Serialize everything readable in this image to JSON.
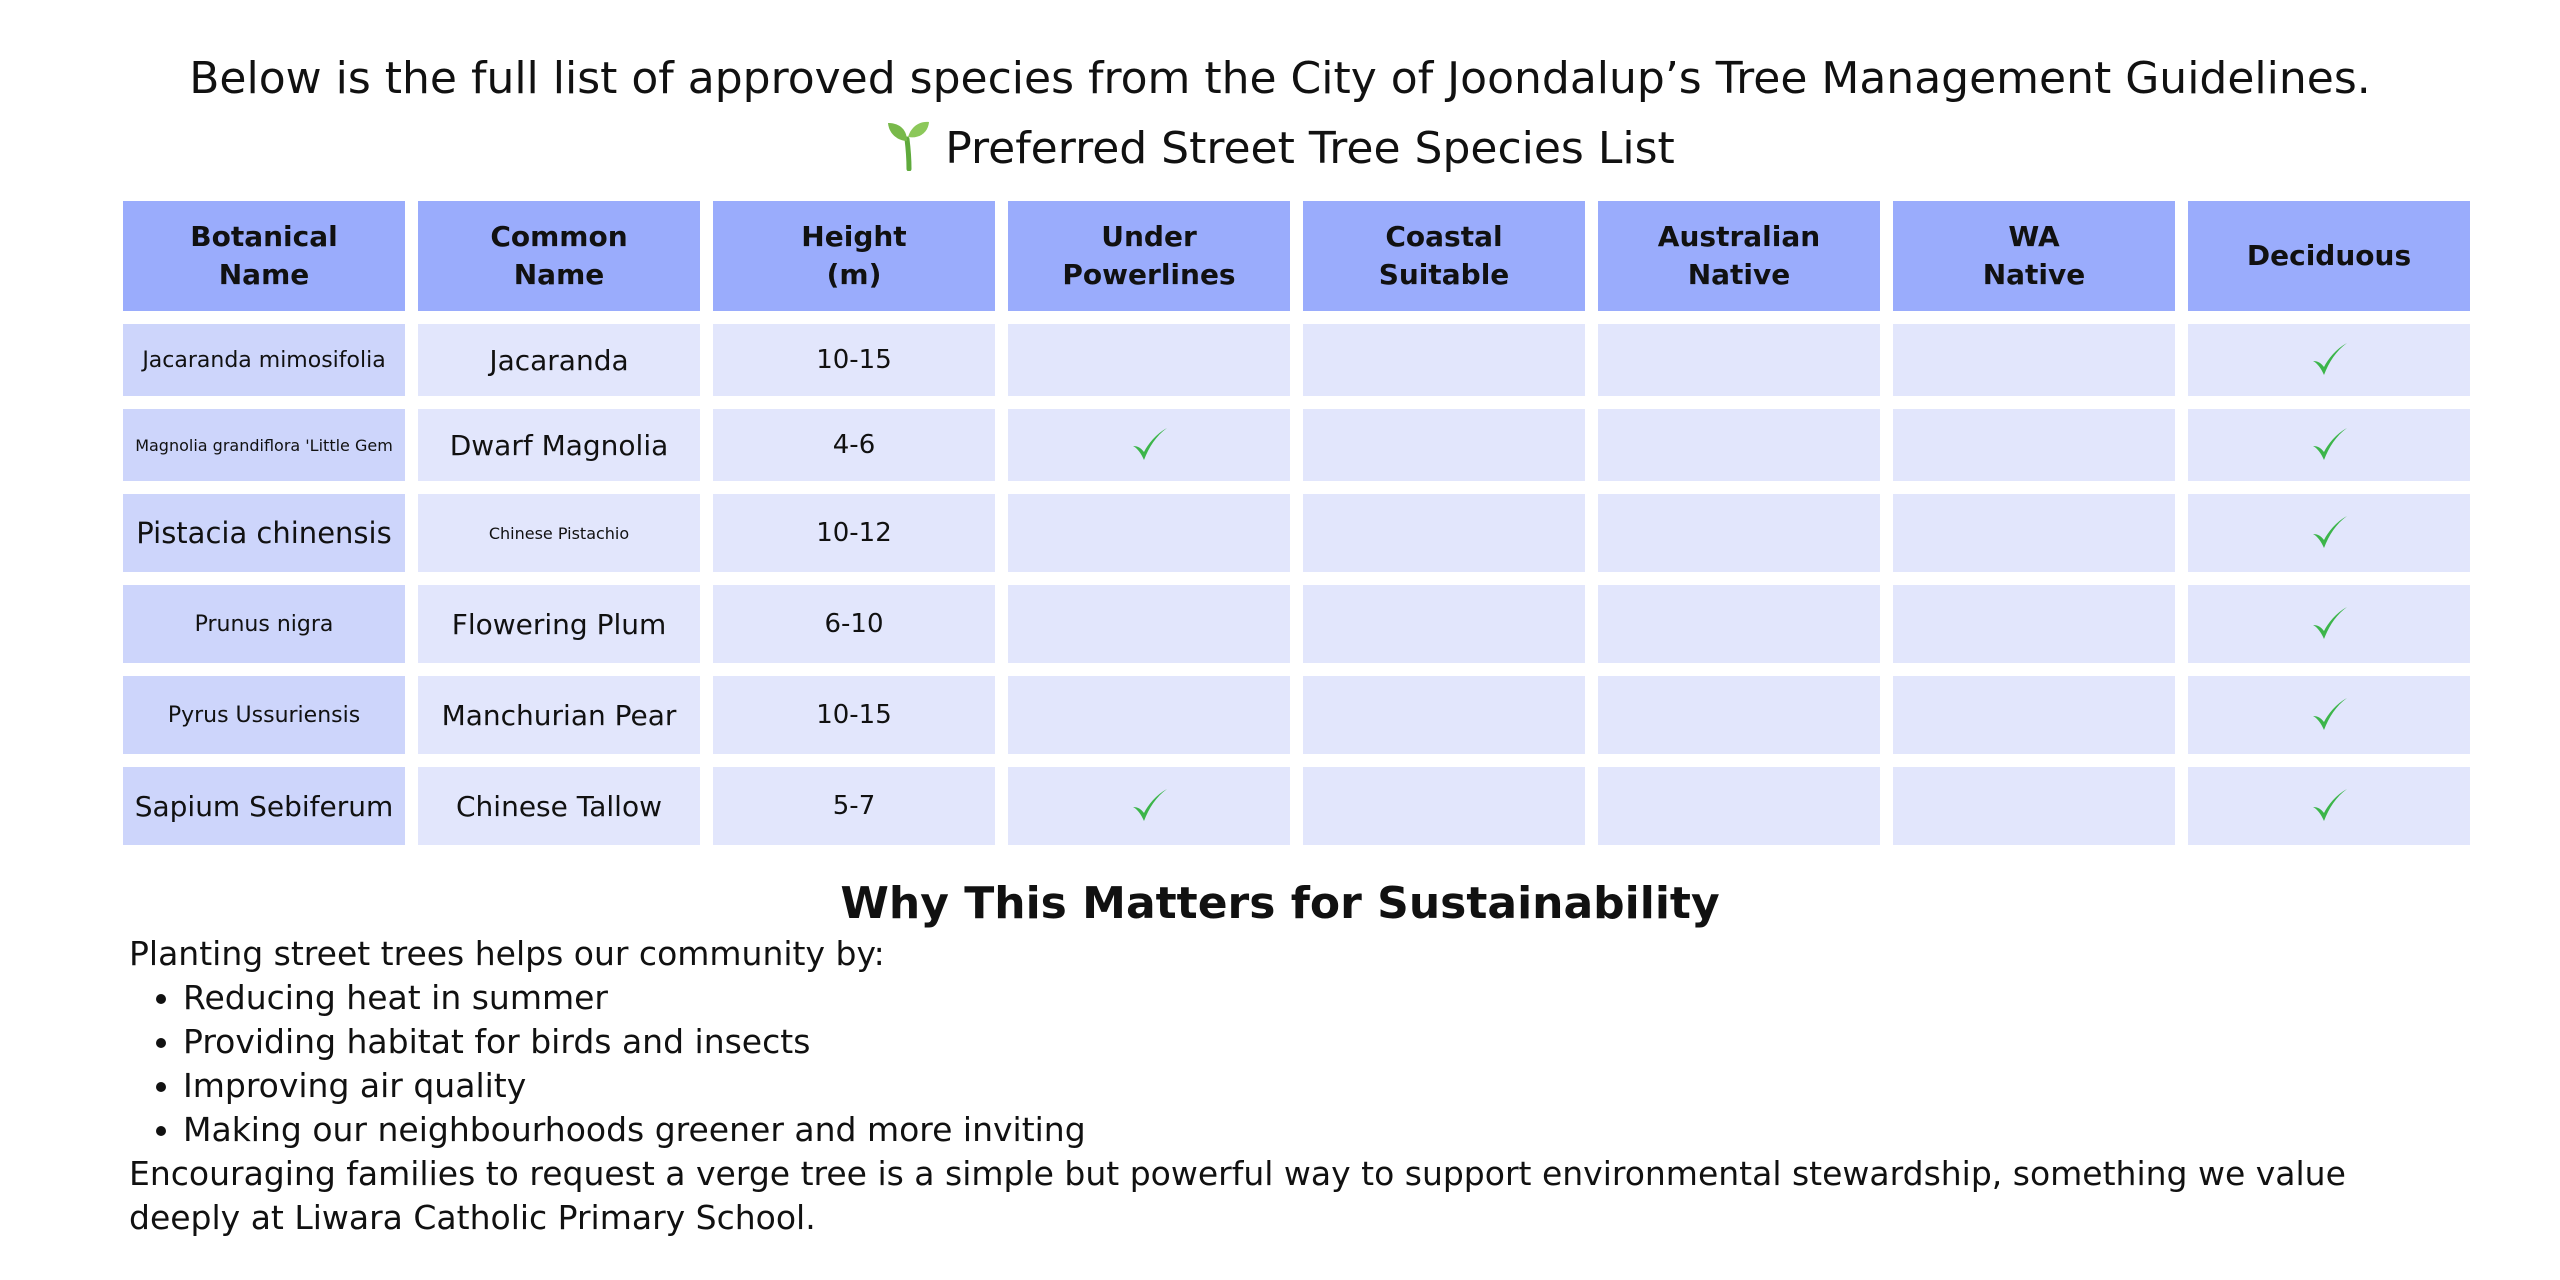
{
  "intro": {
    "line1": "Below is the full list of approved species from the City of Joondalup’s Tree Management Guidelines.",
    "line2": "Preferred Street Tree Species List",
    "line2_icon": "sprout-icon"
  },
  "table": {
    "headers": [
      [
        "Botanical",
        "Name"
      ],
      [
        "Common",
        "Name"
      ],
      [
        "Height",
        "(m)"
      ],
      [
        "Under",
        "Powerlines"
      ],
      [
        "Coastal",
        "Suitable"
      ],
      [
        "Australian",
        "Native"
      ],
      [
        "WA",
        "Native"
      ],
      [
        "Deciduous"
      ]
    ],
    "rows": [
      {
        "botanical": "Jacaranda mimosifolia",
        "common": "Jacaranda",
        "height": "10-15",
        "under_powerlines": false,
        "coastal": false,
        "aus_native": false,
        "wa_native": false,
        "deciduous": true
      },
      {
        "botanical": "Magnolia grandiflora 'Little Gem",
        "common": "Dwarf Magnolia",
        "height": "4-6",
        "under_powerlines": true,
        "coastal": false,
        "aus_native": false,
        "wa_native": false,
        "deciduous": true
      },
      {
        "botanical": "Pistacia chinensis",
        "common": "Chinese Pistachio",
        "height": "10-12",
        "under_powerlines": false,
        "coastal": false,
        "aus_native": false,
        "wa_native": false,
        "deciduous": true
      },
      {
        "botanical": "Prunus nigra",
        "common": "Flowering Plum",
        "height": "6-10",
        "under_powerlines": false,
        "coastal": false,
        "aus_native": false,
        "wa_native": false,
        "deciduous": true
      },
      {
        "botanical": "Pyrus Ussuriensis",
        "common": "Manchurian Pear",
        "height": "10-15",
        "under_powerlines": false,
        "coastal": false,
        "aus_native": false,
        "wa_native": false,
        "deciduous": true
      },
      {
        "botanical": "Sapium Sebiferum",
        "common": "Chinese Tallow",
        "height": "5-7",
        "under_powerlines": true,
        "coastal": false,
        "aus_native": false,
        "wa_native": false,
        "deciduous": true
      }
    ],
    "check_icon": "checkmark-icon",
    "colors": {
      "header": "#9aacfc",
      "cell": "#e2e6fc",
      "botanical_cell": "#cdd5fb",
      "check": "#3cb54a"
    }
  },
  "why": {
    "title": "Why This Matters for Sustainability",
    "intro": "Planting street trees helps our community by:",
    "bullets": [
      "Reducing heat in summer",
      "Providing habitat for birds and insects",
      "Improving air quality",
      "Making our neighbourhoods greener and more inviting"
    ],
    "closing": "Encouraging families to request a verge tree is a simple but powerful way to support environmental stewardship, something we value deeply at Liwara Catholic Primary School."
  }
}
